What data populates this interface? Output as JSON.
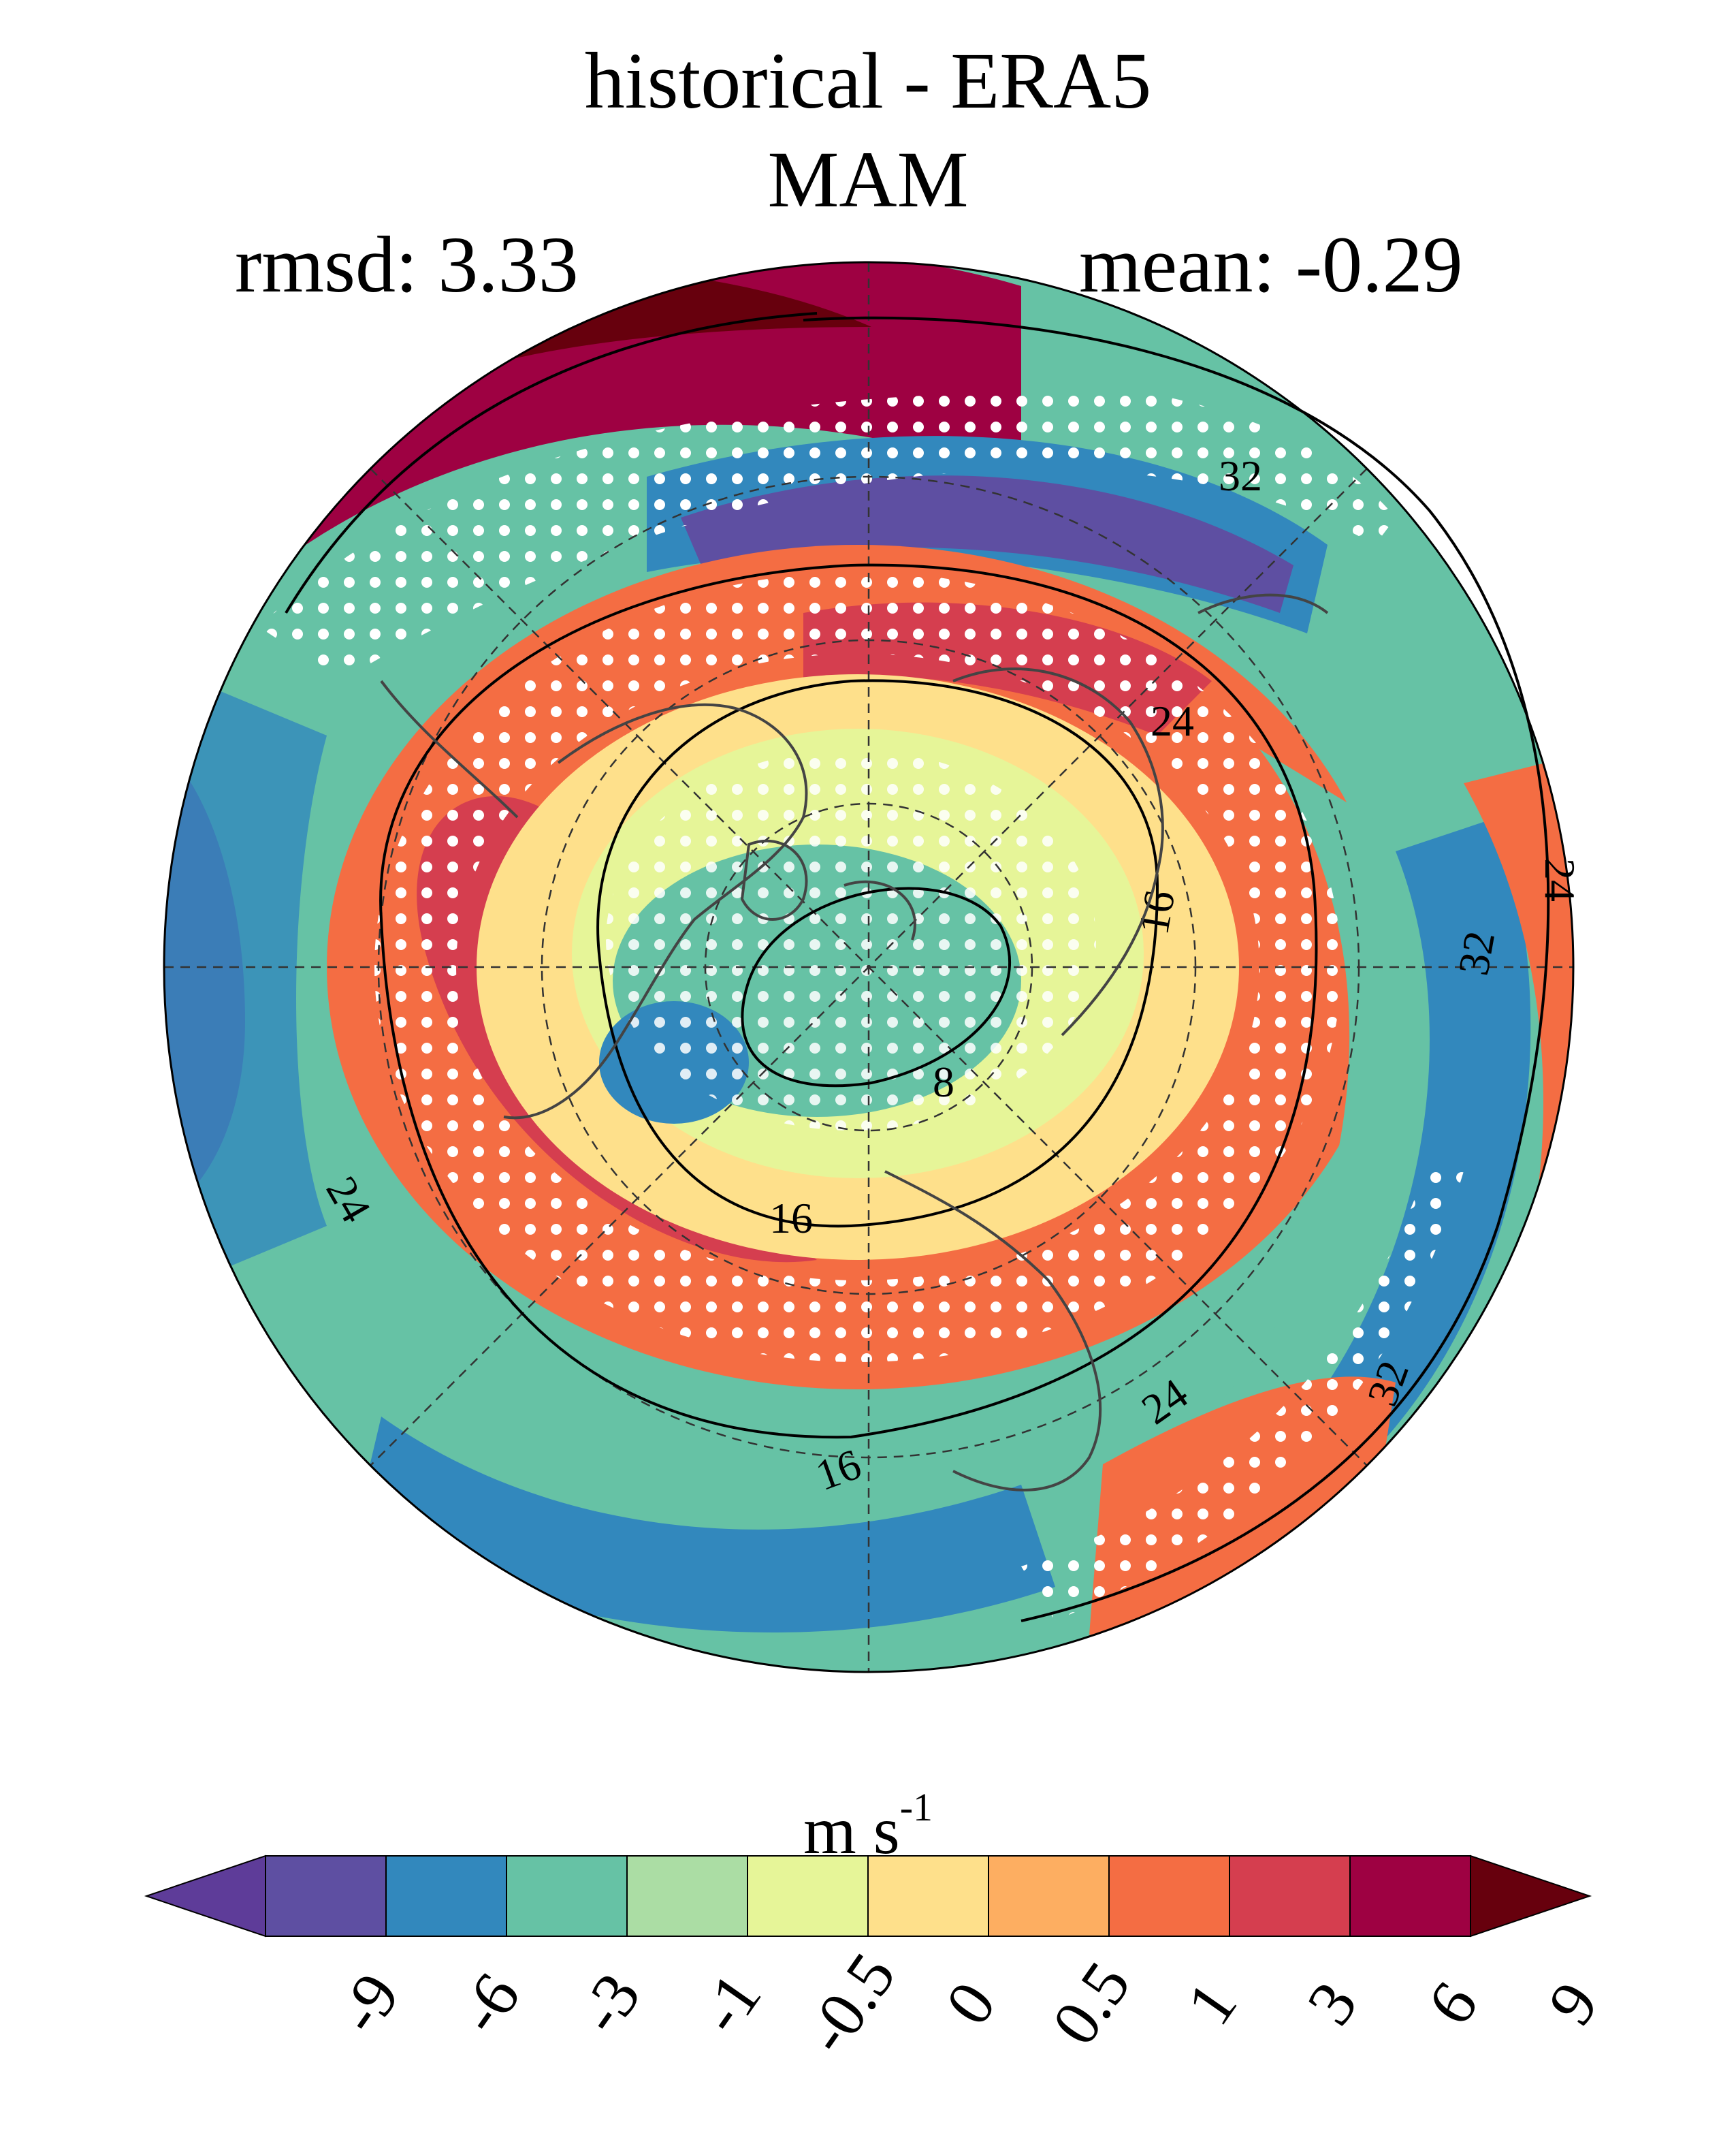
{
  "title": "historical - ERA5",
  "season": "MAM",
  "stats": {
    "rmsd": "rmsd: 3.33",
    "mean": "mean: -0.29"
  },
  "colorbar": {
    "units_base": "m s",
    "units_exp": "-1",
    "tick_labels": [
      "-9",
      "-6",
      "-3",
      "-1",
      "-0.5",
      "0",
      "0.5",
      "1",
      "3",
      "6",
      "9"
    ],
    "colors": [
      "#5e3c99",
      "#5e4fa2",
      "#3288bd",
      "#66c2a5",
      "#abdda4",
      "#e6f598",
      "#fee08b",
      "#fdae61",
      "#f46d43",
      "#d53e4f",
      "#9e0142",
      "#67000d"
    ]
  },
  "map": {
    "projection": "north-polar-stereographic",
    "contour_labels": [
      "32",
      "24",
      "16",
      "8",
      "16",
      "24",
      "16",
      "24",
      "32",
      "24",
      "32"
    ],
    "stippling": "white dots mark significant differences"
  }
}
